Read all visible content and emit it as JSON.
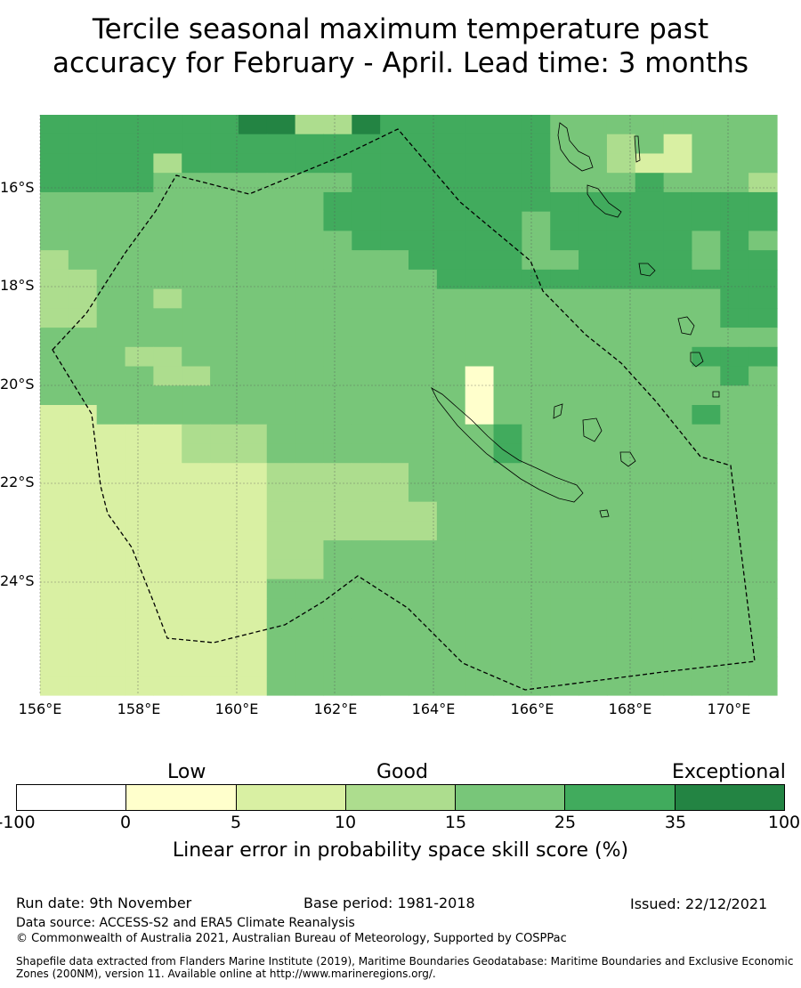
{
  "title_line1": "Tercile seasonal maximum temperature past",
  "title_line2": "accuracy for February - April. Lead time: 3 months",
  "map": {
    "lat_labels": [
      "16°S",
      "18°S",
      "20°S",
      "22°S",
      "24°S"
    ],
    "lon_labels": [
      "156°E",
      "158°E",
      "160°E",
      "162°E",
      "164°E",
      "166°E",
      "168°E",
      "170°E"
    ],
    "grid": [
      "55555556633655555544444444",
      "55555555555555555544342444",
      "55553555555555555544322444",
      "55554444444555555544454443",
      "44444444445555555555555555",
      "44444444445555555455555555",
      "44444444444555555455555454",
      "34444444444445555445555455",
      "33444444444444555555555555",
      "33443444444444444444444455",
      "33444444444444444444444455",
      "44444444444444444444444444",
      "44433444444444444444444555",
      "44443344444444414444444454",
      "44444444444444414444444444",
      "22444444444444414444444544",
      "22222333444444445444444444",
      "22222333444444445444444444",
      "22222222333334444444444444",
      "22222222333334444444444444",
      "22222222333333444444444444",
      "22222222333333444444444444",
      "22222222334444444444444444",
      "22222222334444444444444444",
      "22222222444444444444444444",
      "22222222444444444444444444",
      "22222222444444444444444444",
      "22222222444444444444444444",
      "22222222444444444444444444",
      "22222222444444444444444444"
    ]
  },
  "colorbar": {
    "categories": [
      "Low",
      "Good",
      "Exceptional"
    ],
    "ticks": [
      "-100",
      "0",
      "5",
      "10",
      "15",
      "25",
      "35",
      "100"
    ],
    "colors": [
      "#ffffff",
      "#ffffcc",
      "#d9f0a3",
      "#addd8e",
      "#78c679",
      "#41ab5d",
      "#238443"
    ],
    "label": "Linear error in probability space skill score (%)"
  },
  "footer": {
    "run_date": "Run date: 9th November",
    "base_period": "Base period: 1981-2018",
    "issued": "Issued: 22/12/2021",
    "data_source": "Data source: ACCESS-S2 and ERA5 Climate Reanalysis",
    "copyright": "© Commonwealth of Australia 2021, Australian Bureau of Meteorology, Supported by COSPPac",
    "shapefile": "Shapefile data extracted from Flanders Marine Institute (2019), Maritime Boundaries Geodatabase: Maritime Boundaries and Exclusive Economic Zones (200NM), version 11. Available online at http://www.marineregions.org/."
  }
}
